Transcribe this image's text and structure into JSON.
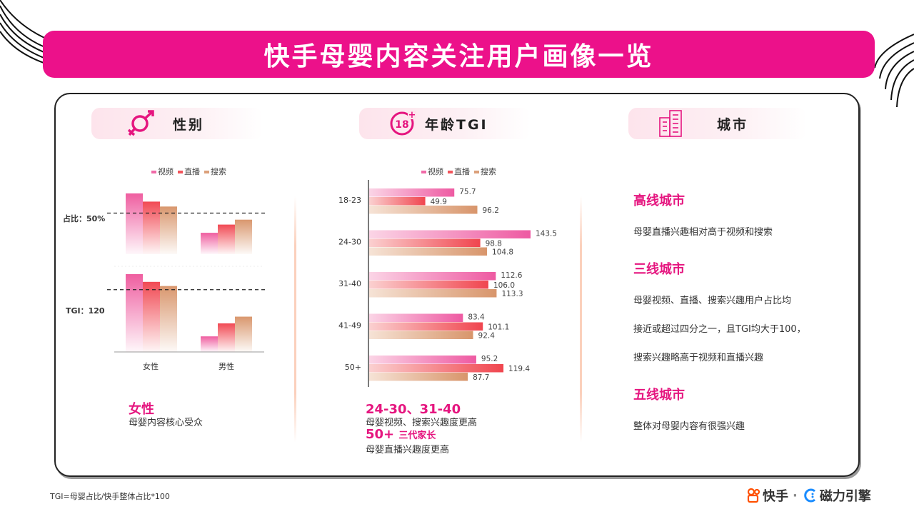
{
  "title": "快手母婴内容关注用户画像一览",
  "legend": [
    "视频",
    "直播",
    "搜索"
  ],
  "colors": {
    "video": "#f06aa8",
    "live": "#f2545b",
    "search": "#dba07a",
    "accent": "#ec118a"
  },
  "gender": {
    "heading": "性别",
    "icon": "gender-icon",
    "categories": [
      "女性",
      "男性"
    ],
    "ref_share_label": "占比：50%",
    "ref_tgi_label": "TGI：120",
    "note_title": "女性",
    "note_text": "母婴内容核心受众"
  },
  "age": {
    "heading": "年龄TGI",
    "icon": "age-18-plus-icon",
    "note1_title": "24-30、31-40",
    "note1_text": "母婴视频、搜索兴趣度更高",
    "note2_title": "50+",
    "note2_sub": "三代家长",
    "note2_text": "母婴直播兴趣度更高"
  },
  "city": {
    "heading": "城市",
    "icon": "city-buildings-icon",
    "high_title": "高线城市",
    "high_text": "母婴直播兴趣相对高于视频和搜索",
    "third_title": "三线城市",
    "third_text1": "母婴视频、直播、搜索兴趣用户占比均",
    "third_text2": "接近或超过四分之一，且TGI均大于100，",
    "third_text3": "搜索兴趣略高于视频和直播兴趣",
    "fifth_title": "五线城市",
    "fifth_text": "整体对母婴内容有很强兴趣"
  },
  "footer_note": "TGI=母婴占比/快手整体占比*100",
  "brand": {
    "kuaishou": "快手",
    "sep": "·",
    "engine": "磁力引擎"
  },
  "chart_data": [
    {
      "type": "bar",
      "categories": [
        "女性",
        "男性"
      ],
      "series": [
        {
          "name": "视频",
          "values": [
            0.74,
            0.26
          ]
        },
        {
          "name": "直播",
          "values": [
            0.64,
            0.36
          ]
        },
        {
          "name": "搜索",
          "values": [
            0.58,
            0.42
          ]
        }
      ],
      "ylim": [
        0,
        1
      ],
      "reference_line": {
        "label": "占比：50%",
        "value": 0.5
      },
      "grid": false
    },
    {
      "type": "bar",
      "categories": [
        "女性",
        "男性"
      ],
      "series": [
        {
          "name": "视频",
          "values": [
            150,
            30
          ]
        },
        {
          "name": "直播",
          "values": [
            135,
            55
          ]
        },
        {
          "name": "搜索",
          "values": [
            127,
            68
          ]
        }
      ],
      "ylim": [
        0,
        165
      ],
      "reference_line": {
        "label": "TGI：120",
        "value": 120
      },
      "grid": false
    },
    {
      "type": "bar",
      "orientation": "horizontal",
      "categories": [
        "18-23",
        "24-30",
        "31-40",
        "41-49",
        "50+"
      ],
      "series": [
        {
          "name": "视频",
          "values": [
            75.7,
            143.5,
            112.6,
            83.4,
            95.2
          ]
        },
        {
          "name": "直播",
          "values": [
            49.9,
            98.8,
            106.0,
            101.1,
            119.4
          ]
        },
        {
          "name": "搜索",
          "values": [
            96.2,
            104.8,
            113.3,
            92.4,
            87.7
          ]
        }
      ],
      "data_labels": [
        [
          "75.7",
          "143.5",
          "112.6",
          "83.4",
          "95.2"
        ],
        [
          "49.9",
          "98.8",
          "106.0",
          "101.1",
          "119.4"
        ],
        [
          "96.2",
          "104.8",
          "113.3",
          "92.4",
          "87.7"
        ]
      ],
      "xlim": [
        0,
        160
      ],
      "title": "年龄TGI"
    }
  ]
}
